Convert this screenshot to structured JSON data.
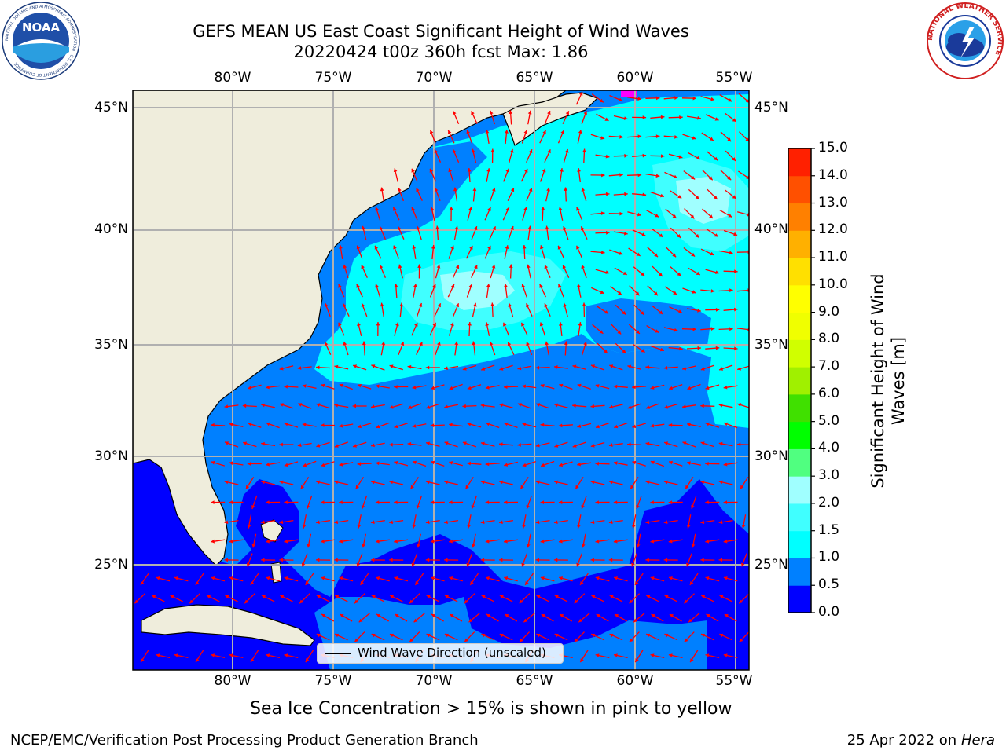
{
  "header": {
    "title_line1": "GEFS MEAN US East Coast Significant Height of Wind Waves",
    "title_line2": "20220424 t00z 360h fcst   Max: 1.86"
  },
  "logos": {
    "noaa_text": "NOAA",
    "noaa_ring_text": "NATIONAL OCEANIC AND ATMOSPHERIC ADMINISTRATION · U.S. DEPARTMENT OF COMMERCE",
    "nws_ring_text": "NATIONAL WEATHER SERVICE"
  },
  "map": {
    "lon_labels": [
      "80°W",
      "75°W",
      "70°W",
      "65°W",
      "60°W",
      "55°W"
    ],
    "lat_labels": [
      "45°N",
      "40°N",
      "35°N",
      "30°N",
      "25°N"
    ],
    "legend_label": "Wind Wave Direction (unscaled)",
    "land_color": "#efeddc",
    "arrow_color": "#ff0000"
  },
  "colorbar": {
    "title_line1": "Significant Height of Wind",
    "title_line2": "Waves [m]",
    "ticks": [
      "0.0",
      "0.5",
      "1.0",
      "1.5",
      "2.0",
      "3.0",
      "4.0",
      "5.0",
      "6.0",
      "7.0",
      "8.0",
      "9.0",
      "10.0",
      "11.0",
      "12.0",
      "13.0",
      "14.0",
      "15.0"
    ],
    "colors": [
      "#0000ff",
      "#0080ff",
      "#00ffff",
      "#40ffff",
      "#a0ffff",
      "#50ff80",
      "#00ff00",
      "#40e000",
      "#a0f000",
      "#d0ff00",
      "#f0ff00",
      "#ffff00",
      "#ffe000",
      "#ffb000",
      "#ff8000",
      "#ff5000",
      "#ff2000"
    ]
  },
  "footer": {
    "sea_ice_note": "Sea Ice Concentration > 15% is shown in pink to yellow",
    "branch": "NCEP/EMC/Verification Post Processing Product Generation Branch",
    "date_prefix": "25 Apr 2022 on ",
    "date_machine": "Hera"
  }
}
